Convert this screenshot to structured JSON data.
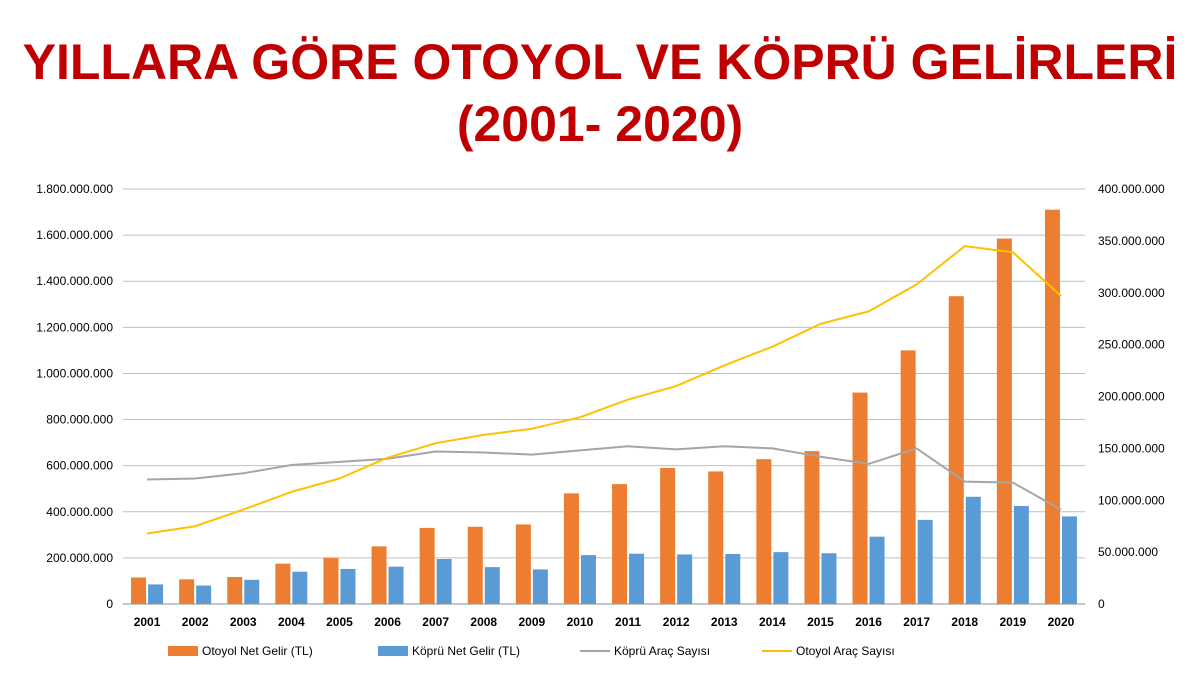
{
  "title": {
    "line1": "YILLARA GÖRE OTOYOL VE KÖPRÜ GELİRLERİ",
    "line2": "(2001- 2020)"
  },
  "chart_data": {
    "type": "bar",
    "categories": [
      "2001",
      "2002",
      "2003",
      "2004",
      "2005",
      "2006",
      "2007",
      "2008",
      "2009",
      "2010",
      "2011",
      "2012",
      "2013",
      "2014",
      "2015",
      "2016",
      "2017",
      "2018",
      "2019",
      "2020"
    ],
    "y_left": {
      "ylim": [
        0,
        1800000000
      ],
      "ticks": [
        "0",
        "200.000.000",
        "400.000.000",
        "600.000.000",
        "800.000.000",
        "1.000.000.000",
        "1.200.000.000",
        "1.400.000.000",
        "1.600.000.000",
        "1.800.000.000"
      ]
    },
    "y_right": {
      "ylim": [
        0,
        400000000
      ],
      "ticks": [
        "0",
        "50.000.000",
        "100.000.000",
        "150.000.000",
        "200.000.000",
        "250.000.000",
        "300.000.000",
        "350.000.000",
        "400.000.000"
      ]
    },
    "grid": true,
    "legend_position": "bottom",
    "series": [
      {
        "name": "Otoyol Net Gelir (TL)",
        "type": "bar",
        "axis": "left",
        "color": "#ed7d31",
        "values": [
          115000000,
          107000000,
          117000000,
          175000000,
          200000000,
          250000000,
          330000000,
          335000000,
          345000000,
          480000000,
          520000000,
          590000000,
          575000000,
          628000000,
          663000000,
          917000000,
          1100000000,
          1335000000,
          1585000000,
          1710000000
        ]
      },
      {
        "name": "Köprü Net Gelir (TL)",
        "type": "bar",
        "axis": "left",
        "color": "#5b9bd5",
        "values": [
          85000000,
          80000000,
          105000000,
          140000000,
          152000000,
          162000000,
          195000000,
          160000000,
          150000000,
          212000000,
          218000000,
          215000000,
          217000000,
          225000000,
          220000000,
          292000000,
          365000000,
          465000000,
          425000000,
          380000000
        ]
      },
      {
        "name": "Köprü Araç Sayısı",
        "type": "line",
        "axis": "right",
        "color": "#a5a5a5",
        "values": [
          120000000,
          121000000,
          126000000,
          134000000,
          137000000,
          140000000,
          147000000,
          146000000,
          144000000,
          148000000,
          152000000,
          149000000,
          152000000,
          150000000,
          142000000,
          135000000,
          150000000,
          118000000,
          117000000,
          91000000
        ]
      },
      {
        "name": "Otoyol Araç Sayısı",
        "type": "line",
        "axis": "right",
        "color": "#ffc000",
        "values": [
          68000000,
          75000000,
          91000000,
          108000000,
          121000000,
          141000000,
          155000000,
          163000000,
          169000000,
          180000000,
          197000000,
          210000000,
          230000000,
          248000000,
          270000000,
          282000000,
          308000000,
          345000000,
          339000000,
          297000000
        ]
      }
    ]
  }
}
